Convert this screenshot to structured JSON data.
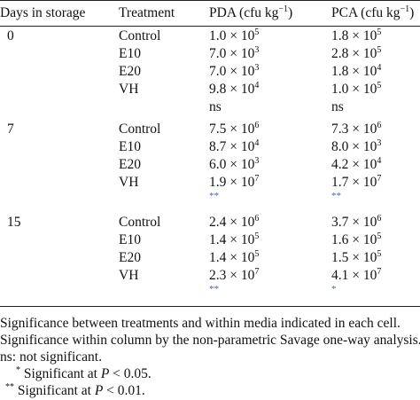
{
  "table": {
    "headers": {
      "days": "Days in storage",
      "treatment": "Treatment",
      "pda": "PDA (cfu kg",
      "pda_exp": "−1",
      "pda_close": ")",
      "pca": "PCA (cfu kg",
      "pca_exp": "−1",
      "pca_close": ")"
    },
    "groups": [
      {
        "day": "0",
        "rows": [
          {
            "treatment": "Control",
            "pda": "1.0 × 10",
            "pda_exp": "5",
            "pca": "1.8 × 10",
            "pca_exp": "5"
          },
          {
            "treatment": "E10",
            "pda": "7.0 × 10",
            "pda_exp": "3",
            "pca": "2.8 × 10",
            "pca_exp": "5"
          },
          {
            "treatment": "E20",
            "pda": "7.0 × 10",
            "pda_exp": "3",
            "pca": "1.8 × 10",
            "pca_exp": "4"
          },
          {
            "treatment": "VH",
            "pda": "9.8 × 10",
            "pda_exp": "4",
            "pca": "1.0 × 10",
            "pca_exp": "5"
          }
        ],
        "sig_pda": "ns",
        "sig_pca": "ns",
        "sig_style": "text"
      },
      {
        "day": "7",
        "rows": [
          {
            "treatment": "Control",
            "pda": "7.5 × 10",
            "pda_exp": "6",
            "pca": "7.3 × 10",
            "pca_exp": "6"
          },
          {
            "treatment": "E10",
            "pda": "8.7 × 10",
            "pda_exp": "4",
            "pca": "8.0 × 10",
            "pca_exp": "3"
          },
          {
            "treatment": "E20",
            "pda": "6.0 × 10",
            "pda_exp": "3",
            "pca": "4.2 × 10",
            "pca_exp": "4"
          },
          {
            "treatment": "VH",
            "pda": "1.9 × 10",
            "pda_exp": "7",
            "pca": "1.7 × 10",
            "pca_exp": "7"
          }
        ],
        "sig_pda": "**",
        "sig_pca": "**",
        "sig_style": "star"
      },
      {
        "day": "15",
        "rows": [
          {
            "treatment": "Control",
            "pda": "2.4 × 10",
            "pda_exp": "6",
            "pca": "3.7 × 10",
            "pca_exp": "6"
          },
          {
            "treatment": "E10",
            "pda": "1.4 × 10",
            "pda_exp": "5",
            "pca": "1.6 × 10",
            "pca_exp": "5"
          },
          {
            "treatment": "E20",
            "pda": "1.4 × 10",
            "pda_exp": "5",
            "pca": "1.5 × 10",
            "pca_exp": "5"
          },
          {
            "treatment": "VH",
            "pda": "2.3 × 10",
            "pda_exp": "7",
            "pca": "4.1 × 10",
            "pca_exp": "7"
          }
        ],
        "sig_pda": "**",
        "sig_pca": "*",
        "sig_style": "star"
      }
    ]
  },
  "notes": {
    "line1": "Significance between treatments and within media indicated in each cell.",
    "line2": "Significance within column by the non-parametric Savage one-way analysis.",
    "line3": "ns: not significant.",
    "line4_sym": "*",
    "line4_pre": "Significant at ",
    "line4_p": "P",
    "line4_post": " < 0.05.",
    "line5_sym": "**",
    "line5_pre": "Significant at ",
    "line5_p": "P",
    "line5_post": " < 0.01."
  }
}
